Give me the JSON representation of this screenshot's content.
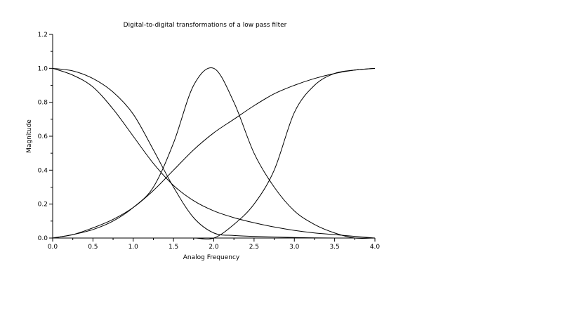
{
  "chart_data": {
    "type": "line",
    "title": "Digital-to-digital transformations of a low pass filter",
    "xlabel": "Analog Frequency",
    "ylabel": "Magnitude",
    "xlim": [
      0.0,
      4.0
    ],
    "ylim": [
      0.0,
      1.2
    ],
    "grid": false,
    "legend": "none",
    "x_ticks": [
      "0.0",
      "0.5",
      "1.0",
      "1.5",
      "2.0",
      "2.5",
      "3.0",
      "3.5",
      "4.0"
    ],
    "y_ticks": [
      "0.0",
      "0.2",
      "0.4",
      "0.6",
      "0.8",
      "1.0",
      "1.2"
    ],
    "x": [
      0.0,
      0.25,
      0.5,
      0.75,
      1.0,
      1.25,
      1.5,
      1.75,
      2.0,
      2.25,
      2.5,
      2.75,
      3.0,
      3.25,
      3.5,
      3.75,
      4.0
    ],
    "series": [
      {
        "values": [
          1.0,
          0.985,
          0.94,
          0.86,
          0.73,
          0.52,
          0.3,
          0.12,
          0.03,
          0.015,
          0.01,
          0.006,
          0.003,
          0.001,
          0.0,
          0.0,
          0.0
        ]
      },
      {
        "values": [
          1.0,
          0.96,
          0.89,
          0.76,
          0.6,
          0.44,
          0.31,
          0.22,
          0.16,
          0.12,
          0.09,
          0.065,
          0.045,
          0.03,
          0.02,
          0.01,
          0.0
        ]
      },
      {
        "values": [
          0.0,
          0.02,
          0.05,
          0.1,
          0.18,
          0.3,
          0.56,
          0.9,
          1.0,
          0.8,
          0.5,
          0.3,
          0.16,
          0.08,
          0.03,
          0.0,
          0.0
        ]
      },
      {
        "values": [
          0.0,
          0.0,
          0.0,
          0.0,
          0.0,
          0.0,
          0.0,
          0.0,
          0.0,
          0.08,
          0.2,
          0.4,
          0.74,
          0.9,
          0.97,
          0.99,
          1.0
        ]
      },
      {
        "values": [
          0.0,
          0.02,
          0.06,
          0.11,
          0.18,
          0.28,
          0.4,
          0.52,
          0.62,
          0.7,
          0.78,
          0.85,
          0.9,
          0.94,
          0.97,
          0.99,
          1.0
        ]
      }
    ]
  }
}
